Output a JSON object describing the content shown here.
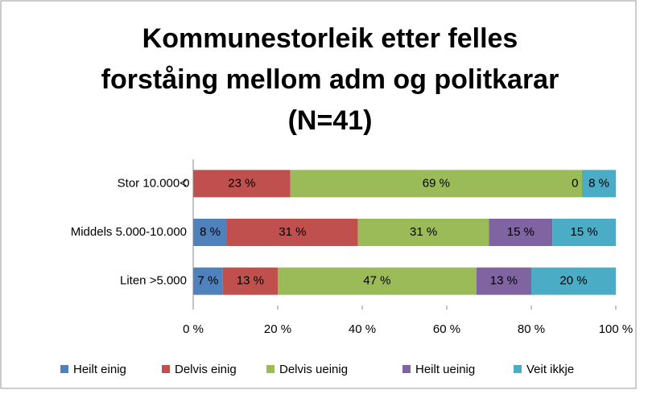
{
  "chart_data": {
    "type": "bar",
    "orientation": "horizontal",
    "stacked": true,
    "title": [
      "Kommunestorleik etter felles",
      "forståing mellom adm og politkarar",
      "(N=41)"
    ],
    "categories": [
      "Stor 10.000<",
      "Middels 5.000-10.000",
      "Liten >5.000"
    ],
    "series": [
      {
        "name": "Heilt einig",
        "color": "#4f81bd",
        "values": [
          0,
          8,
          7
        ],
        "value_labels": [
          "0 %",
          "8 %",
          "7 %"
        ]
      },
      {
        "name": "Delvis einig",
        "color": "#c0504d",
        "values": [
          23,
          31,
          13
        ],
        "value_labels": [
          "23 %",
          "31 %",
          "13 %"
        ]
      },
      {
        "name": "Delvis ueinig",
        "color": "#9bbb59",
        "values": [
          69,
          31,
          47
        ],
        "value_labels": [
          "69 %",
          "31 %",
          "47 %"
        ]
      },
      {
        "name": "Heilt ueinig",
        "color": "#8064a2",
        "values": [
          0,
          15,
          13
        ],
        "value_labels": [
          "0 %",
          "15 %",
          "13 %"
        ]
      },
      {
        "name": "Veit ikkje",
        "color": "#4bacc6",
        "values": [
          8,
          15,
          20
        ],
        "value_labels": [
          "8 %",
          "15 %",
          "20 %"
        ]
      }
    ],
    "xlim": [
      0,
      100
    ],
    "xticks": [
      {
        "value": 0,
        "label": "0 %"
      },
      {
        "value": 20,
        "label": "20 %"
      },
      {
        "value": 40,
        "label": "40 %"
      },
      {
        "value": 60,
        "label": "60 %"
      },
      {
        "value": 80,
        "label": "80 %"
      },
      {
        "value": 100,
        "label": "100 %"
      }
    ],
    "grid": false,
    "legend": "bottom"
  }
}
